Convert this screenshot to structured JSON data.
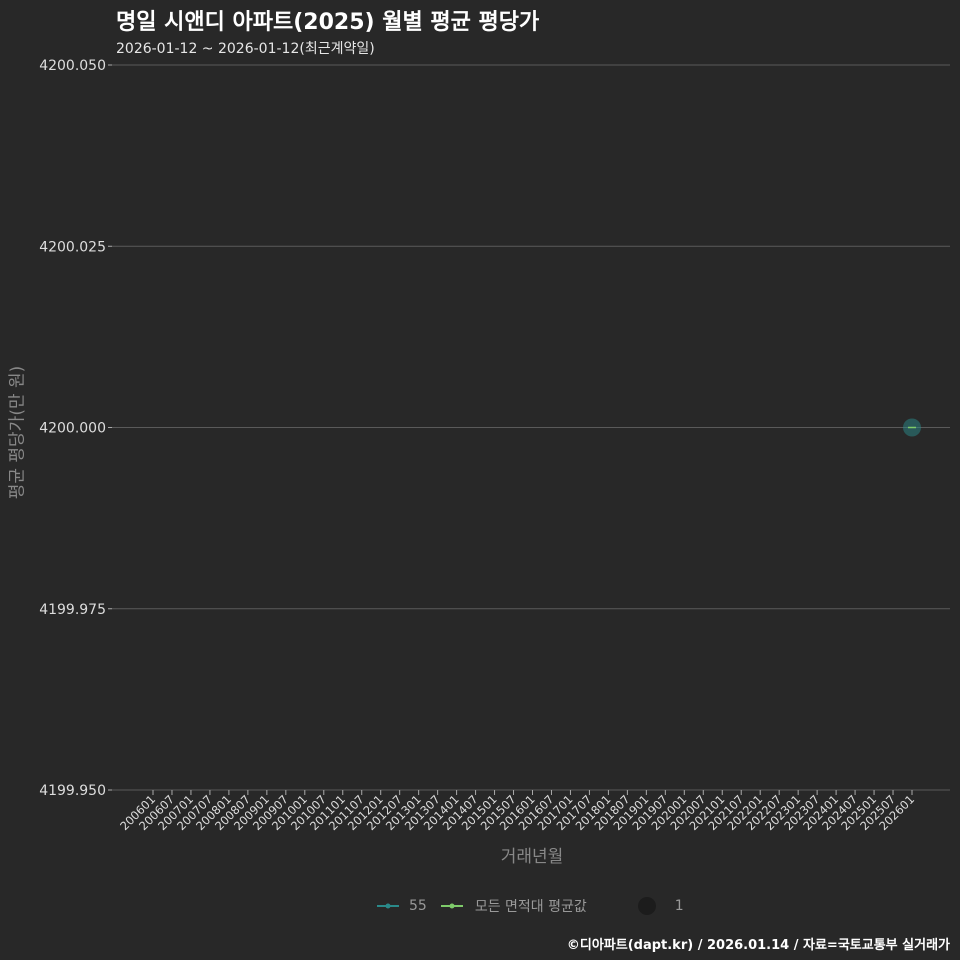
{
  "chart_data": {
    "type": "scatter",
    "title": "명일 시앤디 아파트(2025) 월별 평균 평당가",
    "subtitle": "2026-01-12 ~ 2026-01-12(최근계약일)",
    "xlabel": "거래년월",
    "ylabel": "평균 평당가(만 원)",
    "ylim": [
      4199.95,
      4200.05
    ],
    "yticks": [
      "4199.950",
      "4199.975",
      "4200.000",
      "4200.025",
      "4200.050"
    ],
    "ytick_values": [
      4199.95,
      4199.975,
      4200.0,
      4200.025,
      4200.05
    ],
    "xticks": [
      "200601",
      "200607",
      "200701",
      "200707",
      "200801",
      "200807",
      "200901",
      "200907",
      "201001",
      "201007",
      "201101",
      "201107",
      "201201",
      "201207",
      "201301",
      "201307",
      "201401",
      "201407",
      "201501",
      "201507",
      "201601",
      "201607",
      "201701",
      "201707",
      "201801",
      "201807",
      "201901",
      "201907",
      "202001",
      "202007",
      "202101",
      "202107",
      "202201",
      "202207",
      "202301",
      "202307",
      "202401",
      "202407",
      "202501",
      "202507",
      "202601"
    ],
    "series": [
      {
        "name": "55",
        "color": "#2a8a8a",
        "points": [
          {
            "x": "202601",
            "y": 4200.0,
            "count": 1
          }
        ]
      }
    ],
    "legend": {
      "items": [
        {
          "label": "55",
          "color": "#2a8a8a"
        },
        {
          "label": "모든 면적대 평균값",
          "color": "#7ecb6a"
        }
      ],
      "size_label": "1",
      "placement": "bottom"
    },
    "grid": true
  },
  "footer": "©디아파트(dapt.kr) / 2026.01.14 / 자료=국토교통부 실거래가"
}
